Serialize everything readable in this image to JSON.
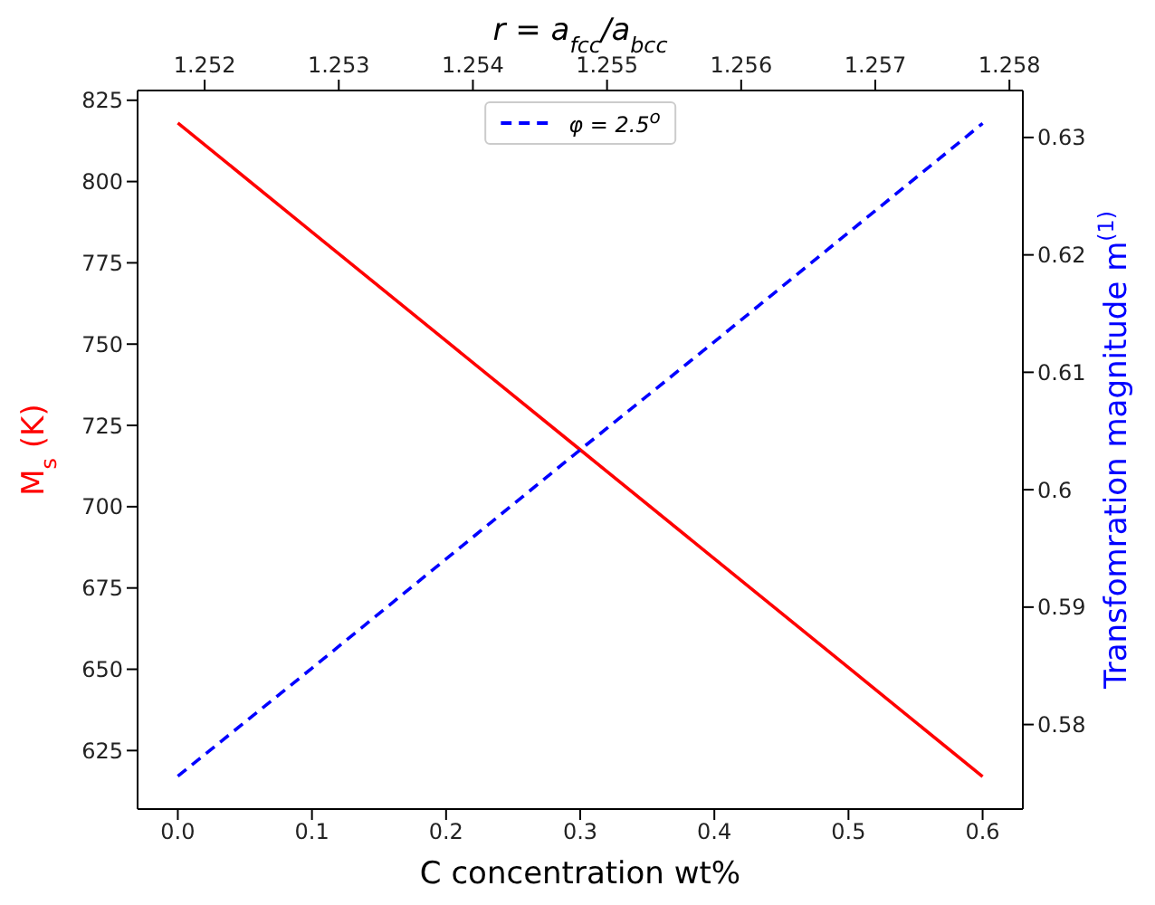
{
  "chart_data": {
    "type": "line",
    "xlabel": "C concentration wt%",
    "ylabel": "M$_{s}$ (K)",
    "y2label": "Transfomration magnitude m$^{(1)}$",
    "x2label": "r = a$_{fcc}$/a$_{bcc}$",
    "x": [
      0,
      0.1,
      0.2,
      0.3,
      0.4,
      0.5,
      0.6
    ],
    "series": [
      {
        "color": "#ff0000",
        "values": [
          818,
          784.5,
          751,
          717.5,
          684,
          650.5,
          617
        ],
        "line_style": "solid"
      },
      {
        "name": "φ = 2.5$^{o}$",
        "color": "#0000ff",
        "axis": "y2",
        "line_style": "dashed",
        "values": [
          0.5756,
          0.5848,
          0.5941,
          0.6034,
          0.6126,
          0.6219,
          0.6312
        ]
      }
    ],
    "xlim": [
      -0.03,
      0.63
    ],
    "xticks": [
      {
        "value": 0,
        "label": "0.0"
      },
      0.1,
      0.2,
      0.3,
      0.4,
      0.5,
      0.6
    ],
    "ylim": [
      607,
      828
    ],
    "yticks": [
      625,
      650,
      675,
      700,
      725,
      750,
      775,
      800,
      825
    ],
    "y2lim": [
      0.5728,
      0.634
    ],
    "y2ticks": [
      0.58,
      0.59,
      0.6,
      0.61,
      0.62,
      0.63
    ],
    "x2lim": [
      1.2515,
      1.2581
    ],
    "x2ticks": [
      1.252,
      1.253,
      1.254,
      1.255,
      1.256,
      1.257,
      1.258
    ],
    "legend": "top",
    "grid": false,
    "marker": "none"
  }
}
